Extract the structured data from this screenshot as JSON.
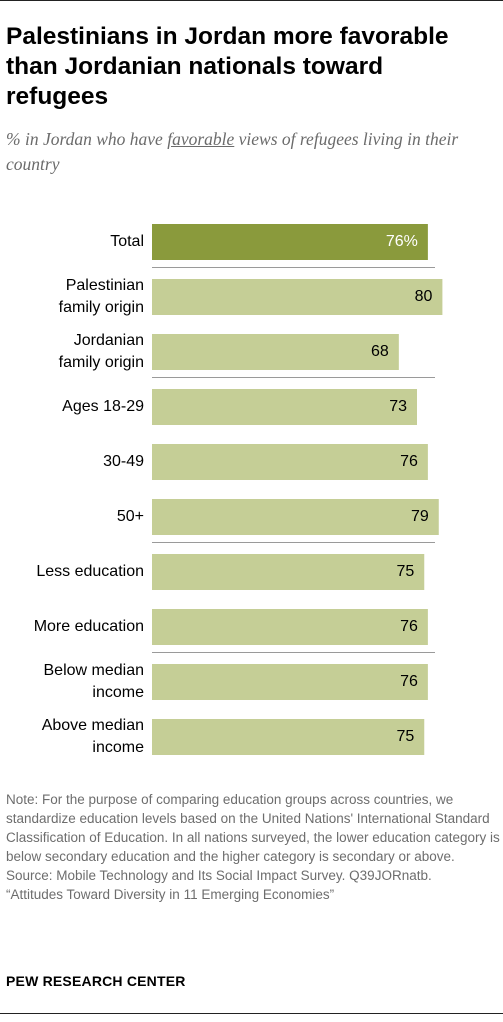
{
  "title": "Palestinians in Jordan more favorable than Jordanian nationals toward refugees",
  "subtitle": {
    "before": "% in Jordan who have ",
    "emphasis": "favorable",
    "after": " views of refugees living in their country"
  },
  "chart_data": {
    "type": "bar",
    "orientation": "horizontal",
    "categories": [
      "Total",
      "Palestinian family origin",
      "Jordanian family origin",
      "Ages 18-29",
      "30-49",
      "50+",
      "Less education",
      "More education",
      "Below median income",
      "Above median income"
    ],
    "category_lines": [
      [
        "Total"
      ],
      [
        "Palestinian",
        "family origin"
      ],
      [
        "Jordanian",
        "family origin"
      ],
      [
        "Ages 18-29"
      ],
      [
        "30-49"
      ],
      [
        "50+"
      ],
      [
        "Less education"
      ],
      [
        "More education"
      ],
      [
        "Below median",
        "income"
      ],
      [
        "Above median",
        "income"
      ]
    ],
    "values": [
      76,
      80,
      68,
      73,
      76,
      79,
      75,
      76,
      76,
      75
    ],
    "value_labels": [
      "76%",
      "80",
      "68",
      "73",
      "76",
      "79",
      "75",
      "76",
      "76",
      "75"
    ],
    "groups_separated_after": [
      0,
      2,
      5,
      7
    ],
    "xlim": [
      0,
      100
    ],
    "colors": {
      "total": "#8a9a3c",
      "bar": "#c5ce96",
      "total_label": "#ffffff",
      "label": "#000000",
      "divider": "#9a9a9a"
    }
  },
  "note": "Note: For the purpose of comparing education groups across countries, we standardize education levels based on the United Nations' International Standard Classification of Education. In all nations surveyed, the lower education category is below secondary education and the higher category is secondary or above.",
  "source": "Source: Mobile Technology and Its Social Impact Survey. Q39JORnatb.",
  "report": "“Attitudes Toward Diversity in 11 Emerging Economies”",
  "brand": "PEW RESEARCH CENTER"
}
